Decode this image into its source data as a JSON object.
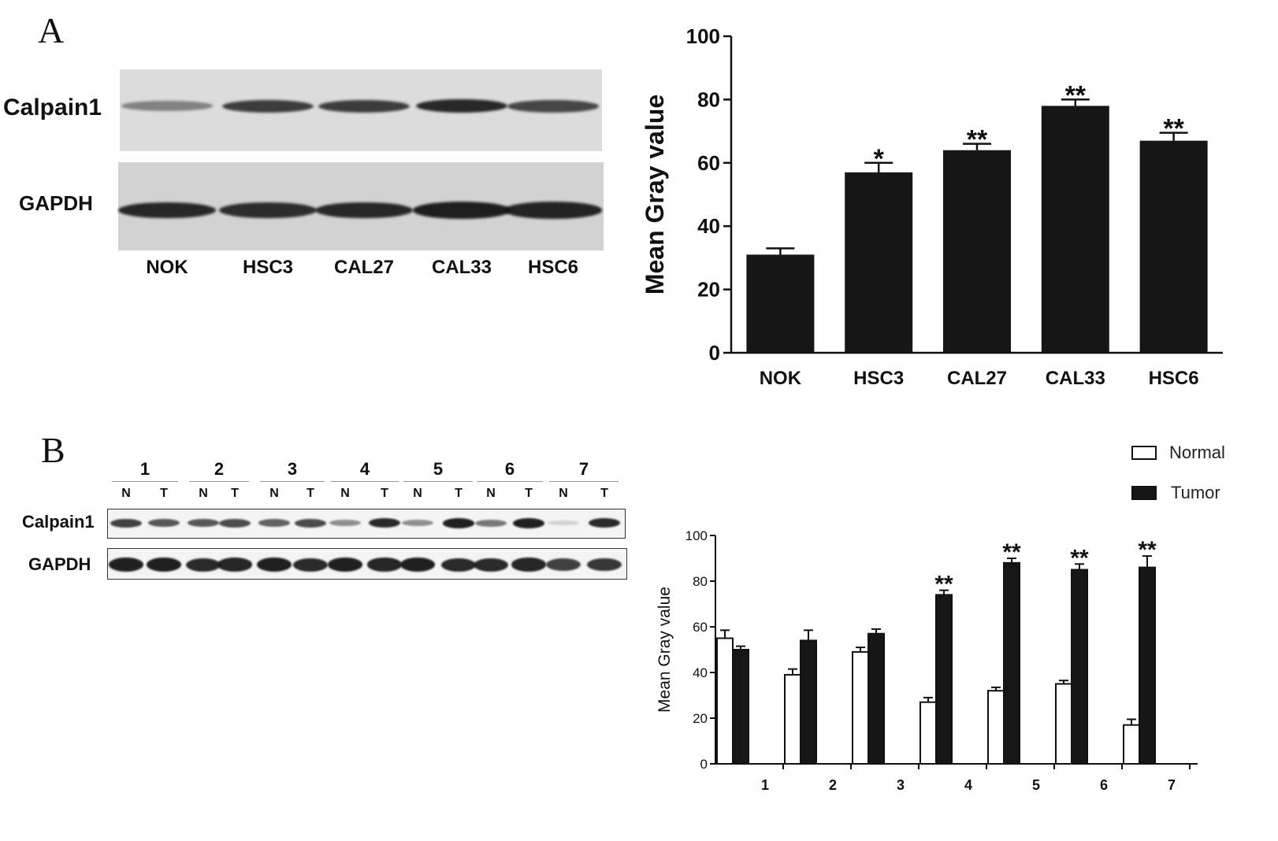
{
  "panelA": {
    "letter": "A",
    "blot": {
      "row_labels": [
        "Calpain1",
        "GAPDH"
      ],
      "lanes": [
        "NOK",
        "HSC3",
        "CAL27",
        "CAL33",
        "HSC6"
      ],
      "calpain_intensity": [
        0.45,
        0.8,
        0.8,
        0.9,
        0.75
      ],
      "gapdh_intensity": [
        0.9,
        0.88,
        0.9,
        0.95,
        0.92
      ]
    }
  },
  "panelB": {
    "letter": "B",
    "blot": {
      "row_labels": [
        "Calpain1",
        "GAPDH"
      ],
      "samples": [
        "1",
        "2",
        "3",
        "4",
        "5",
        "6",
        "7"
      ],
      "nt": [
        "N",
        "T"
      ],
      "calpain_intensity": [
        [
          0.8,
          0.7
        ],
        [
          0.7,
          0.75
        ],
        [
          0.65,
          0.75
        ],
        [
          0.45,
          0.9
        ],
        [
          0.45,
          0.95
        ],
        [
          0.55,
          0.95
        ],
        [
          0.15,
          0.9
        ]
      ],
      "gapdh_intensity": [
        [
          0.95,
          0.95
        ],
        [
          0.9,
          0.92
        ],
        [
          0.95,
          0.9
        ],
        [
          0.95,
          0.92
        ],
        [
          0.95,
          0.9
        ],
        [
          0.9,
          0.92
        ],
        [
          0.8,
          0.85
        ]
      ]
    }
  },
  "chart_data": [
    {
      "type": "bar",
      "title": "",
      "xlabel": "",
      "ylabel": "Mean Gray value",
      "categories": [
        "NOK",
        "HSC3",
        "CAL27",
        "CAL33",
        "HSC6"
      ],
      "values": [
        31,
        57,
        64,
        78,
        67
      ],
      "errors": [
        2,
        3,
        2,
        2,
        2.5
      ],
      "annotations": [
        "",
        "*",
        "**",
        "**",
        "**"
      ],
      "ylim": [
        0,
        100
      ],
      "yticks": [
        0,
        20,
        40,
        60,
        80,
        100
      ],
      "color": "#161616"
    },
    {
      "type": "bar",
      "title": "",
      "xlabel": "",
      "ylabel": "Mean Gray value",
      "categories": [
        "1",
        "2",
        "3",
        "4",
        "5",
        "6",
        "7"
      ],
      "series": [
        {
          "name": "Normal",
          "values": [
            55,
            39,
            49,
            27,
            32,
            35,
            17
          ],
          "errors": [
            3.5,
            2.5,
            2,
            2,
            1.5,
            1.5,
            2.5
          ],
          "color": "#ffffff"
        },
        {
          "name": "Tumor",
          "values": [
            50,
            54,
            57,
            74,
            88,
            85,
            86
          ],
          "errors": [
            1.5,
            4.5,
            2,
            2,
            2,
            2.5,
            5
          ],
          "color": "#161616"
        }
      ],
      "annotations": [
        "",
        "",
        "",
        "**",
        "**",
        "**",
        "**"
      ],
      "ylim": [
        0,
        100
      ],
      "yticks": [
        0,
        20,
        40,
        60,
        80,
        100
      ],
      "legend": "top-right"
    }
  ]
}
